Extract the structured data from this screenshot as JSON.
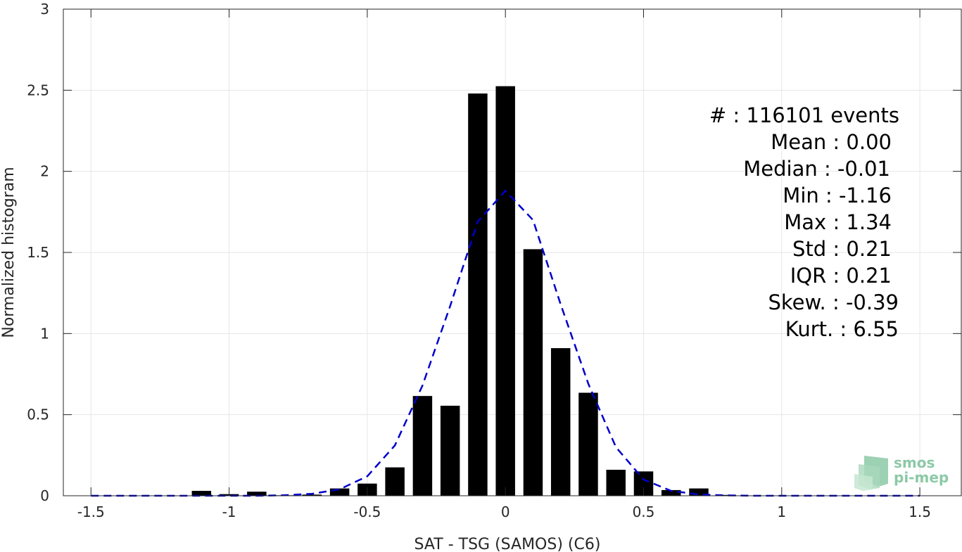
{
  "chart_data": {
    "type": "bar",
    "xlabel": "SAT - TSG (SAMOS) (C6)",
    "ylabel": "Normalized histogram",
    "xlim": [
      -1.6,
      1.65
    ],
    "ylim": [
      0,
      3
    ],
    "grid": true,
    "x_ticks": [
      -1.5,
      -1,
      -0.5,
      0,
      0.5,
      1,
      1.5
    ],
    "x_tick_labels": [
      "-1.5",
      "-1",
      "-0.5",
      "0",
      "0.5",
      "1",
      "1.5"
    ],
    "y_ticks": [
      0,
      0.5,
      1,
      1.5,
      2,
      2.5,
      3
    ],
    "y_tick_labels": [
      "0",
      "0.5",
      "1",
      "1.5",
      "2",
      "2.5",
      "3"
    ],
    "bar_width": 0.07,
    "bars": {
      "x": [
        -1.1,
        -1.0,
        -0.9,
        -0.8,
        -0.7,
        -0.6,
        -0.5,
        -0.4,
        -0.3,
        -0.2,
        -0.1,
        0.0,
        0.1,
        0.2,
        0.3,
        0.4,
        0.5,
        0.6,
        0.7,
        0.8
      ],
      "y": [
        0.03,
        0.01,
        0.025,
        0.003,
        0.007,
        0.045,
        0.075,
        0.175,
        0.615,
        0.555,
        2.48,
        2.525,
        1.52,
        0.91,
        0.635,
        0.16,
        0.15,
        0.035,
        0.045,
        0.005
      ],
      "color": "#000000"
    },
    "fit_curve": {
      "style": "dashed",
      "color": "#0000cc",
      "x": [
        -1.5,
        -1.4,
        -1.3,
        -1.2,
        -1.1,
        -1.0,
        -0.9,
        -0.8,
        -0.7,
        -0.6,
        -0.5,
        -0.4,
        -0.3,
        -0.2,
        -0.1,
        0.0,
        0.1,
        0.2,
        0.3,
        0.4,
        0.5,
        0.6,
        0.7,
        0.8,
        0.9,
        1.0,
        1.1,
        1.2,
        1.3,
        1.4,
        1.5
      ],
      "y": [
        0,
        0,
        0,
        0,
        0,
        0,
        0,
        0.003,
        0.012,
        0.04,
        0.12,
        0.31,
        0.68,
        1.17,
        1.69,
        1.88,
        1.7,
        1.18,
        0.69,
        0.3,
        0.1,
        0.03,
        0.008,
        0.002,
        0,
        0,
        0,
        0,
        0,
        0,
        0
      ]
    },
    "stats": [
      {
        "label": "#  : 116101 events",
        "anchor_right": 1278
      },
      {
        "label": "Mean : 0.00",
        "anchor_right": 1267
      },
      {
        "label": "Median : -0.01",
        "anchor_right": 1265
      },
      {
        "label": "Min : -1.16",
        "anchor_right": 1267
      },
      {
        "label": "Max : 1.34",
        "anchor_right": 1267
      },
      {
        "label": "Std : 0.21",
        "anchor_right": 1267
      },
      {
        "label": "IQR : 0.21",
        "anchor_right": 1267
      },
      {
        "label": "Skew. : -0.39",
        "anchor_right": 1277
      },
      {
        "label": "Kurt. : 6.55",
        "anchor_right": 1277
      }
    ]
  },
  "logo": {
    "line1": "smos",
    "line2": "pi-mep",
    "color": "#8cc9a6"
  }
}
